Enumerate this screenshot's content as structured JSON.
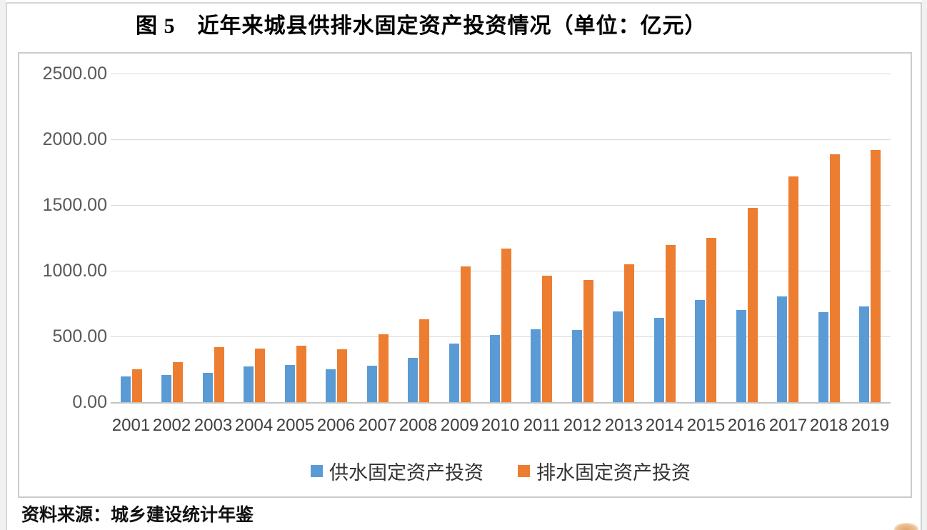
{
  "title": "图 5　近年来城县供排水固定资产投资情况（单位：亿元）",
  "source_note": "资料来源：城乡建设统计年鉴",
  "colors": {
    "supply_blue": "#5B9BD5",
    "drain_orange": "#ED7D31",
    "gridline": "#D9D9D9",
    "axis_text": "#595959",
    "category_text": "#404040",
    "chart_border": "#CBCBCB"
  },
  "icons": {
    "legend_supply_swatch": "blue-square-icon",
    "legend_drain_swatch": "orange-square-icon"
  },
  "chart_data": {
    "type": "bar",
    "title": "图 5　近年来城县供排水固定资产投资情况（单位：亿元）",
    "unit": "亿元",
    "categories": [
      "2001",
      "2002",
      "2003",
      "2004",
      "2005",
      "2006",
      "2007",
      "2008",
      "2009",
      "2010",
      "2011",
      "2012",
      "2013",
      "2014",
      "2015",
      "2016",
      "2017",
      "2018",
      "2019"
    ],
    "series": [
      {
        "key": "supply",
        "name": "供水固定资产投资",
        "color": "#5B9BD5",
        "values": [
          195,
          205,
          225,
          272,
          285,
          250,
          275,
          338,
          443,
          510,
          553,
          551,
          688,
          643,
          775,
          703,
          802,
          685,
          729
        ]
      },
      {
        "key": "drain",
        "name": "排水固定资产投资",
        "color": "#ED7D31",
        "values": [
          248,
          307,
          420,
          406,
          432,
          400,
          515,
          632,
          1032,
          1168,
          964,
          930,
          1050,
          1196,
          1248,
          1478,
          1716,
          1886,
          1917
        ]
      }
    ],
    "ylim": [
      0,
      2500
    ],
    "yticks": [
      "2500.00",
      "2000.00",
      "1500.00",
      "1000.00",
      "500.00",
      "0.00"
    ],
    "grid": true,
    "legend_position": "bottom"
  }
}
